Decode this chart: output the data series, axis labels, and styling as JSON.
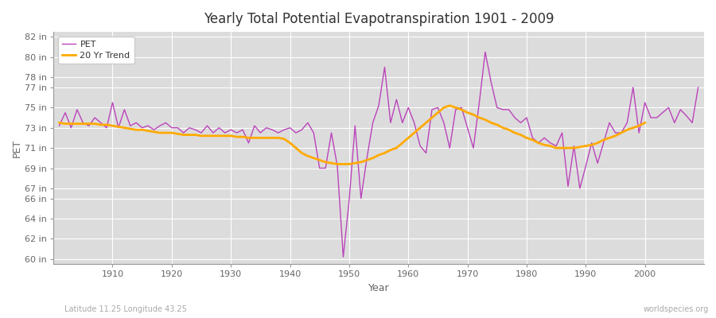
{
  "title": "Yearly Total Potential Evapotranspiration 1901 - 2009",
  "xlabel": "Year",
  "ylabel": "PET",
  "pet_label": "PET",
  "trend_label": "20 Yr Trend",
  "pet_color": "#bb44bb",
  "trend_color": "#ffaa00",
  "bg_outer": "#ffffff",
  "bg_plot": "#dcdcdc",
  "grid_color": "#ffffff",
  "annotation_left": "Latitude 11.25 Longitude 43.25",
  "annotation_right": "worldspecies.org",
  "years": [
    1901,
    1902,
    1903,
    1904,
    1905,
    1906,
    1907,
    1908,
    1909,
    1910,
    1911,
    1912,
    1913,
    1914,
    1915,
    1916,
    1917,
    1918,
    1919,
    1920,
    1921,
    1922,
    1923,
    1924,
    1925,
    1926,
    1927,
    1928,
    1929,
    1930,
    1931,
    1932,
    1933,
    1934,
    1935,
    1936,
    1937,
    1938,
    1939,
    1940,
    1941,
    1942,
    1943,
    1944,
    1945,
    1946,
    1947,
    1948,
    1949,
    1950,
    1951,
    1952,
    1953,
    1954,
    1955,
    1956,
    1957,
    1958,
    1959,
    1960,
    1961,
    1962,
    1963,
    1964,
    1965,
    1966,
    1967,
    1968,
    1969,
    1970,
    1971,
    1972,
    1973,
    1974,
    1975,
    1976,
    1977,
    1978,
    1979,
    1980,
    1981,
    1982,
    1983,
    1984,
    1985,
    1986,
    1987,
    1988,
    1989,
    1990,
    1991,
    1992,
    1993,
    1994,
    1995,
    1996,
    1997,
    1998,
    1999,
    2000,
    2001,
    2002,
    2003,
    2004,
    2005,
    2006,
    2007,
    2008,
    2009
  ],
  "pet_values": [
    73.2,
    74.5,
    73.0,
    74.8,
    73.5,
    73.2,
    74.0,
    73.5,
    73.0,
    75.5,
    73.0,
    74.8,
    73.2,
    73.5,
    73.0,
    73.2,
    72.8,
    73.2,
    73.5,
    73.0,
    73.0,
    72.5,
    73.0,
    72.8,
    72.5,
    73.2,
    72.5,
    73.0,
    72.5,
    72.8,
    72.5,
    72.8,
    71.5,
    73.2,
    72.5,
    73.0,
    72.8,
    72.5,
    72.8,
    73.0,
    72.5,
    72.8,
    73.5,
    72.5,
    69.0,
    69.0,
    72.5,
    69.2,
    60.2,
    65.8,
    73.2,
    66.0,
    70.0,
    73.5,
    75.2,
    79.0,
    73.5,
    75.8,
    73.5,
    75.0,
    73.5,
    71.2,
    70.5,
    74.8,
    75.0,
    73.5,
    71.0,
    74.8,
    75.0,
    73.0,
    71.0,
    75.5,
    80.5,
    77.5,
    75.0,
    74.8,
    74.8,
    74.0,
    73.5,
    74.0,
    72.0,
    71.5,
    72.0,
    71.5,
    71.2,
    72.5,
    67.2,
    71.2,
    67.0,
    69.2,
    71.5,
    69.5,
    71.5,
    73.5,
    72.5,
    72.5,
    73.5,
    77.0,
    72.5,
    75.5,
    74.0,
    74.0,
    74.5,
    75.0,
    73.5,
    74.8,
    74.2,
    73.5,
    77.0
  ],
  "trend_values": [
    73.5,
    73.4,
    73.4,
    73.4,
    73.4,
    73.4,
    73.4,
    73.3,
    73.3,
    73.2,
    73.1,
    73.0,
    72.9,
    72.8,
    72.8,
    72.7,
    72.6,
    72.5,
    72.5,
    72.5,
    72.4,
    72.3,
    72.3,
    72.3,
    72.2,
    72.2,
    72.2,
    72.2,
    72.2,
    72.2,
    72.1,
    72.1,
    72.0,
    72.0,
    72.0,
    72.0,
    72.0,
    72.0,
    71.9,
    71.5,
    71.0,
    70.5,
    70.2,
    70.0,
    69.8,
    69.6,
    69.5,
    69.4,
    69.4,
    69.4,
    69.5,
    69.6,
    69.8,
    70.0,
    70.3,
    70.5,
    70.8,
    71.0,
    71.5,
    72.0,
    72.5,
    73.0,
    73.5,
    74.0,
    74.5,
    75.0,
    75.2,
    75.0,
    74.8,
    74.5,
    74.3,
    74.0,
    73.8,
    73.5,
    73.3,
    73.0,
    72.8,
    72.5,
    72.3,
    72.0,
    71.8,
    71.5,
    71.3,
    71.2,
    71.0,
    71.0,
    71.0,
    71.0,
    71.1,
    71.2,
    71.3,
    71.5,
    71.8,
    72.0,
    72.2,
    72.5,
    72.8,
    73.0,
    73.2,
    73.5,
    null,
    null,
    null,
    null,
    null,
    null,
    null,
    null,
    null
  ],
  "ylim": [
    59.5,
    82.5
  ],
  "yticks": [
    60,
    62,
    64,
    66,
    67,
    69,
    71,
    73,
    75,
    77,
    78,
    80,
    82
  ],
  "xticks": [
    1910,
    1920,
    1930,
    1940,
    1950,
    1960,
    1970,
    1980,
    1990,
    2000
  ],
  "xlim": [
    1900,
    2010
  ]
}
